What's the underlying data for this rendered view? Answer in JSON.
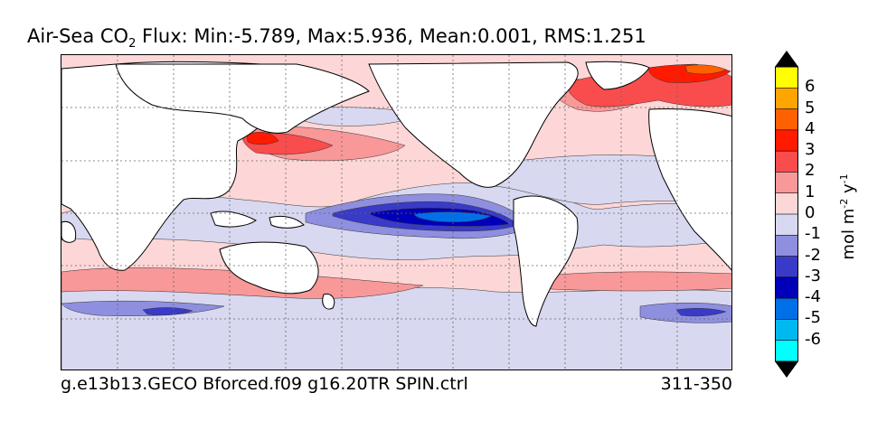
{
  "title": {
    "prefix": "Air-Sea CO",
    "subscript": "2",
    "stats": " Flux: Min:-5.789, Max:5.936, Mean:0.001, RMS:1.251"
  },
  "footer": {
    "case_name": "g.e13b13.GECO Bforced.f09 g16.20TR SPIN.ctrl",
    "years": "311-350"
  },
  "colorbar": {
    "unit_prefix": "mol m",
    "unit_exp1": "-2",
    "unit_mid": " y",
    "unit_exp2": "-1",
    "tick_labels": [
      "6",
      "5",
      "4",
      "3",
      "2",
      "1",
      "0",
      "-1",
      "-2",
      "-3",
      "-4",
      "-5",
      "-6"
    ],
    "colors": [
      "#ffff00",
      "#ffa500",
      "#ff6000",
      "#ff1a00",
      "#f94c4c",
      "#f99898",
      "#fdd7d7",
      "#d8d8f0",
      "#8f8fe0",
      "#3a3ac8",
      "#0000b8",
      "#0070e8",
      "#00b8f0",
      "#00ffff"
    ],
    "over_color": "#000000",
    "under_color": "#000000"
  },
  "colors": {
    "land": "#ffffff",
    "ocean_background": "#fdd7d7",
    "gridline": "#666666"
  }
}
